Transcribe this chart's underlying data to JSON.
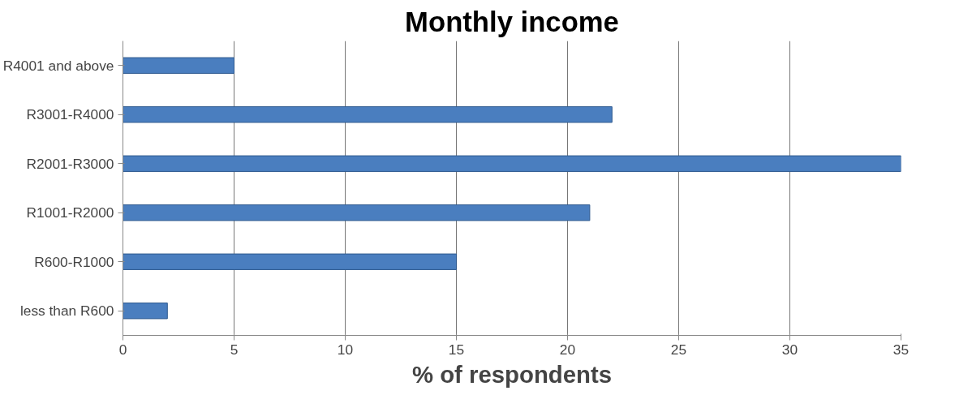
{
  "chart_data": {
    "type": "bar",
    "orientation": "horizontal",
    "title": "Monthly income",
    "xlabel": "% of respondents",
    "categories": [
      "R4001 and above",
      "R3001-R4000",
      "R2001-R3000",
      "R1001-R2000",
      "R600-R1000",
      "less than R600"
    ],
    "values": [
      5,
      22,
      35,
      21,
      15,
      2
    ],
    "color": "#4a7ebf",
    "xlim": [
      0,
      35
    ],
    "xticks": [
      0,
      5,
      10,
      15,
      20,
      25,
      30,
      35
    ],
    "grid": "x"
  }
}
